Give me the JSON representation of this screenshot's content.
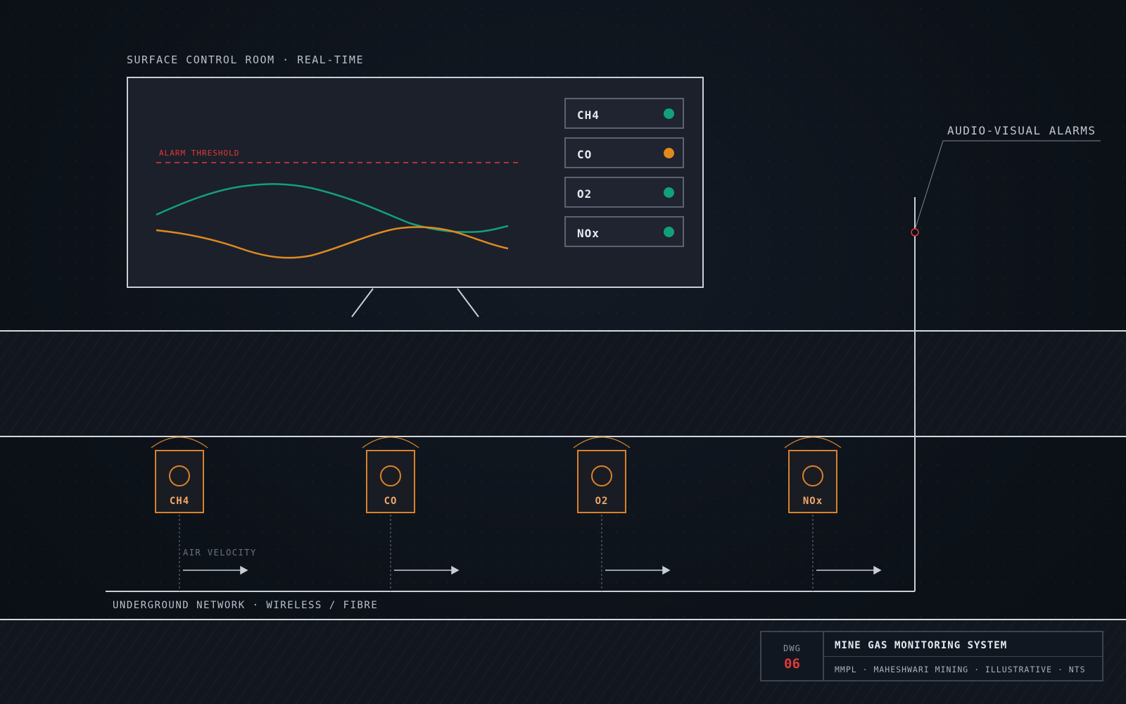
{
  "control_room": {
    "label": "SURFACE CONTROL ROOM · REAL-TIME",
    "alarm_threshold_label": "ALARM THRESHOLD",
    "gas_status": [
      {
        "name": "CH4",
        "status_color": "#12a07a"
      },
      {
        "name": "CO",
        "status_color": "#e08a1e"
      },
      {
        "name": "O2",
        "status_color": "#12a07a"
      },
      {
        "name": "NOx",
        "status_color": "#12a07a"
      }
    ],
    "trend_colors": {
      "series_a": "#12a07a",
      "series_b": "#e08a1e",
      "threshold": "#e03a3a"
    }
  },
  "alarms": {
    "label": "AUDIO-VISUAL ALARMS",
    "color": "#e03a3a"
  },
  "sensors": [
    "CH4",
    "CO",
    "O2",
    "NOx"
  ],
  "sensor_color": "#d9822b",
  "air_velocity_label": "AIR VELOCITY",
  "network_label": "UNDERGROUND NETWORK · WIRELESS / FIBRE",
  "title_block": {
    "dwg_label": "DWG",
    "dwg_number": "06",
    "title": "MINE GAS MONITORING SYSTEM",
    "subtitle": "MMPL · MAHESHWARI MINING · ILLUSTRATIVE · NTS"
  }
}
